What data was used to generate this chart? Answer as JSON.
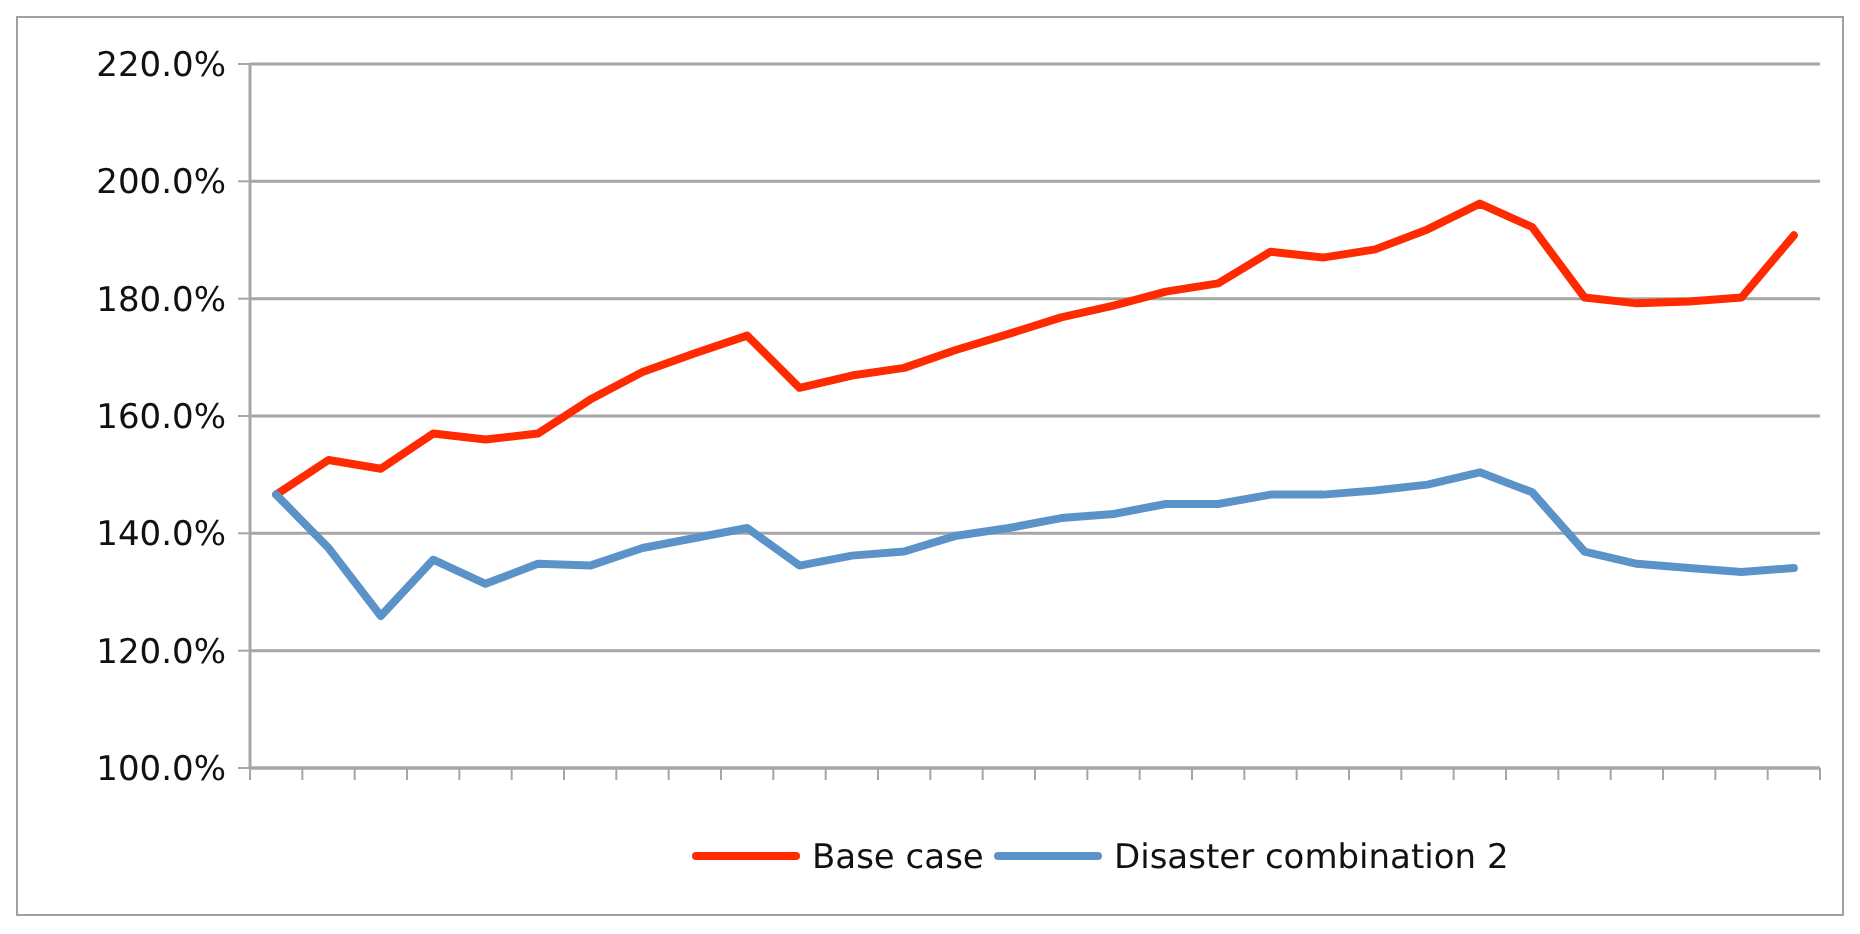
{
  "chart_data": {
    "type": "line",
    "categories": [
      null,
      null,
      null,
      null,
      null,
      null,
      null,
      null,
      null,
      null,
      null,
      null,
      null,
      null,
      null,
      null,
      null,
      null,
      null,
      null,
      null,
      null,
      null,
      null,
      null,
      null,
      null,
      null,
      null,
      null
    ],
    "series": [
      {
        "name": "Base case",
        "color": "#ff2a00",
        "values": [
          146.6,
          152.5,
          151,
          157,
          156,
          157,
          162.8,
          167.5,
          170.7,
          173.7,
          164.8,
          166.9,
          168.2,
          171.3,
          174,
          176.8,
          178.8,
          181.2,
          182.6,
          188,
          187,
          188.4,
          191.8,
          196.2,
          192.2,
          180.2,
          179.2,
          179.5,
          180.2,
          190.8
        ]
      },
      {
        "name": "Disaster combination 2",
        "color": "#5b93c8",
        "values": [
          146.6,
          137.5,
          125.9,
          135.5,
          131.4,
          134.8,
          134.5,
          137.5,
          139.2,
          140.9,
          134.5,
          136.2,
          136.9,
          139.6,
          140.9,
          142.6,
          143.3,
          145,
          145,
          146.6,
          146.6,
          147.3,
          148.3,
          150.4,
          147,
          136.9,
          134.8,
          134.1,
          133.4,
          134.1
        ]
      }
    ],
    "ylim": [
      100,
      220
    ],
    "yticks": [
      {
        "value": 100,
        "label": "100.0%"
      },
      {
        "value": 120,
        "label": "120.0%"
      },
      {
        "value": 140,
        "label": "140.0%"
      },
      {
        "value": 160,
        "label": "160.0%"
      },
      {
        "value": 180,
        "label": "180.0%"
      },
      {
        "value": 200,
        "label": "200.0%"
      },
      {
        "value": 220,
        "label": "220.0%"
      }
    ],
    "grid": "y",
    "legend": "bottom",
    "marker": "none",
    "line_style": "solid"
  }
}
